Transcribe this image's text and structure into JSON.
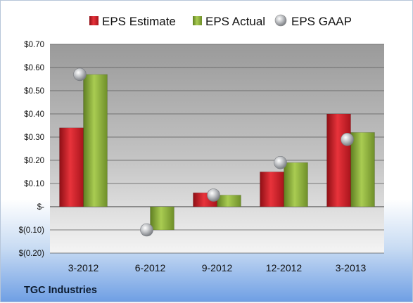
{
  "chart_data": {
    "type": "bar",
    "categories": [
      "3-2012",
      "6-2012",
      "9-2012",
      "12-2012",
      "3-2013"
    ],
    "series": [
      {
        "name": "EPS Estimate",
        "values": [
          0.34,
          null,
          0.06,
          0.15,
          0.4
        ],
        "color": "#d0202a"
      },
      {
        "name": "EPS Actual",
        "values": [
          0.57,
          -0.1,
          0.05,
          0.19,
          0.32
        ],
        "color": "#8db13c"
      },
      {
        "name": "EPS GAAP",
        "values": [
          0.57,
          -0.1,
          0.05,
          0.19,
          0.29
        ],
        "color": "#b9bcc0",
        "marker": "sphere"
      }
    ],
    "ylim": [
      -0.2,
      0.7
    ],
    "yticks": [
      -0.2,
      -0.1,
      0,
      0.1,
      0.2,
      0.3,
      0.4,
      0.5,
      0.6,
      0.7
    ],
    "ytick_labels": [
      "$(0.20)",
      "$(0.10)",
      "$-",
      "$0.10",
      "$0.20",
      "$0.30",
      "$0.40",
      "$0.50",
      "$0.60",
      "$0.70"
    ],
    "grid": true,
    "legend_position": "top"
  },
  "footer": {
    "company": "TGC Industries"
  },
  "colors": {
    "plot_top": "#9a9a9a",
    "plot_bottom": "#f4f4f4",
    "grid": "#5a5a5a"
  }
}
